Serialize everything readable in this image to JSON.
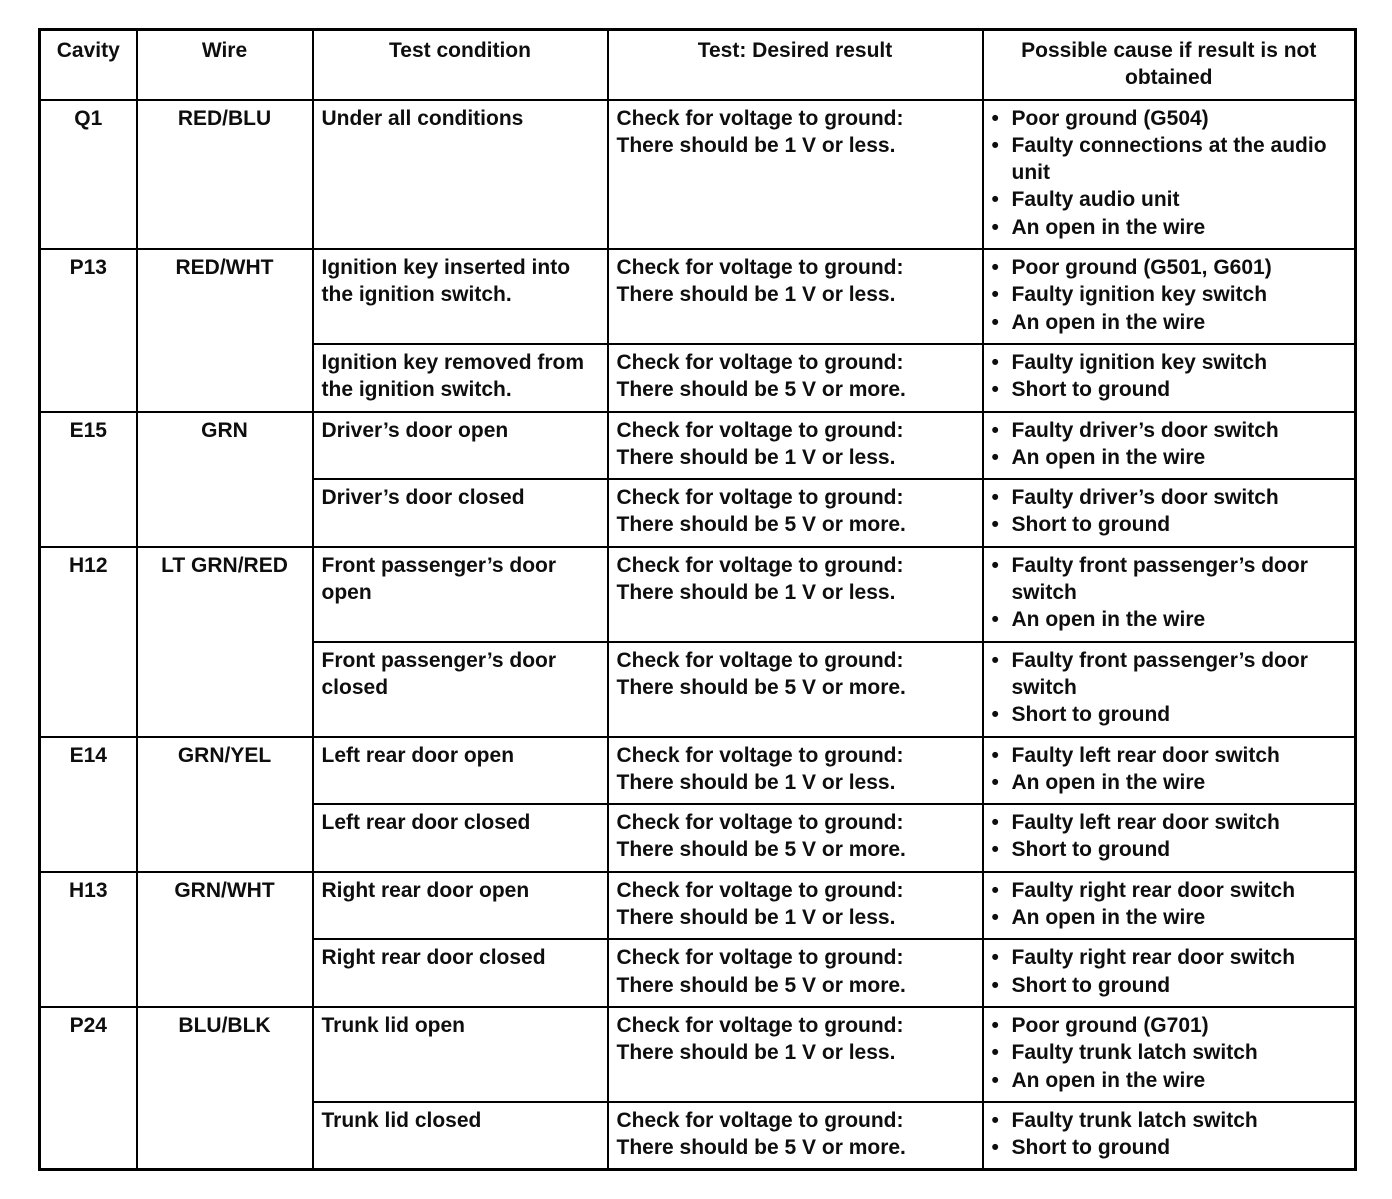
{
  "page": {
    "background": "#ffffff",
    "text_color": "#0e0e0e",
    "border_color": "#000000",
    "bullet_char": "•"
  },
  "table": {
    "headers": [
      "Cavity",
      "Wire",
      "Test condition",
      "Test: Desired result",
      "Possible cause if result is not obtained"
    ],
    "rows": [
      {
        "cavity": "Q1",
        "wire": "RED/BLU",
        "tests": [
          {
            "condition": "Under all conditions",
            "result": "Check for voltage to ground:\nThere should be 1 V or less.",
            "causes": [
              "Poor ground (G504)",
              "Faulty connections at the audio unit",
              "Faulty audio unit",
              "An open in the wire"
            ]
          }
        ]
      },
      {
        "cavity": "P13",
        "wire": "RED/WHT",
        "tests": [
          {
            "condition": "Ignition key inserted into the ignition switch.",
            "result": "Check for voltage to ground:\nThere should be 1 V or less.",
            "causes": [
              "Poor ground (G501, G601)",
              "Faulty ignition key switch",
              "An open in the wire"
            ]
          },
          {
            "condition": "Ignition key removed from the ignition switch.",
            "result": "Check for voltage to ground:\nThere should be 5 V or more.",
            "causes": [
              "Faulty ignition key switch",
              "Short to ground"
            ]
          }
        ]
      },
      {
        "cavity": "E15",
        "wire": "GRN",
        "tests": [
          {
            "condition": "Driver’s door open",
            "result": "Check for voltage to ground:\nThere should be 1 V or less.",
            "causes": [
              "Faulty driver’s door switch",
              "An open in the wire"
            ]
          },
          {
            "condition": "Driver’s door closed",
            "result": "Check for voltage to ground:\nThere should be 5 V or more.",
            "causes": [
              "Faulty driver’s door switch",
              "Short to ground"
            ]
          }
        ]
      },
      {
        "cavity": "H12",
        "wire": "LT GRN/RED",
        "tests": [
          {
            "condition": "Front passenger’s door open",
            "result": "Check for voltage to ground:\nThere should be 1 V or less.",
            "causes": [
              "Faulty front passenger’s door switch",
              "An open in the wire"
            ]
          },
          {
            "condition": "Front passenger’s door closed",
            "result": "Check for voltage to ground:\nThere should be 5 V or more.",
            "causes": [
              "Faulty front passenger’s door switch",
              "Short to ground"
            ]
          }
        ]
      },
      {
        "cavity": "E14",
        "wire": "GRN/YEL",
        "tests": [
          {
            "condition": "Left rear door open",
            "result": "Check for voltage to ground:\nThere should be 1 V or less.",
            "causes": [
              "Faulty left rear door switch",
              "An open in the wire"
            ]
          },
          {
            "condition": "Left rear door closed",
            "result": "Check for voltage to ground:\nThere should be 5 V or more.",
            "causes": [
              "Faulty left rear door switch",
              "Short to ground"
            ]
          }
        ]
      },
      {
        "cavity": "H13",
        "wire": "GRN/WHT",
        "tests": [
          {
            "condition": "Right rear door open",
            "result": "Check for voltage to ground:\nThere should be 1 V or less.",
            "causes": [
              "Faulty right rear door switch",
              "An open in the wire"
            ]
          },
          {
            "condition": "Right rear door closed",
            "result": "Check for voltage to ground:\nThere should be 5 V or more.",
            "causes": [
              "Faulty right rear door switch",
              "Short to ground"
            ]
          }
        ]
      },
      {
        "cavity": "P24",
        "wire": "BLU/BLK",
        "tests": [
          {
            "condition": "Trunk lid open",
            "result": "Check for voltage to ground:\nThere should be 1 V or less.",
            "causes": [
              "Poor ground (G701)",
              "Faulty trunk latch switch",
              "An open in the wire"
            ]
          },
          {
            "condition": "Trunk lid closed",
            "result": "Check for voltage to ground:\nThere should be 5 V or more.",
            "causes": [
              "Faulty trunk latch switch",
              "Short to ground"
            ]
          }
        ]
      }
    ]
  }
}
